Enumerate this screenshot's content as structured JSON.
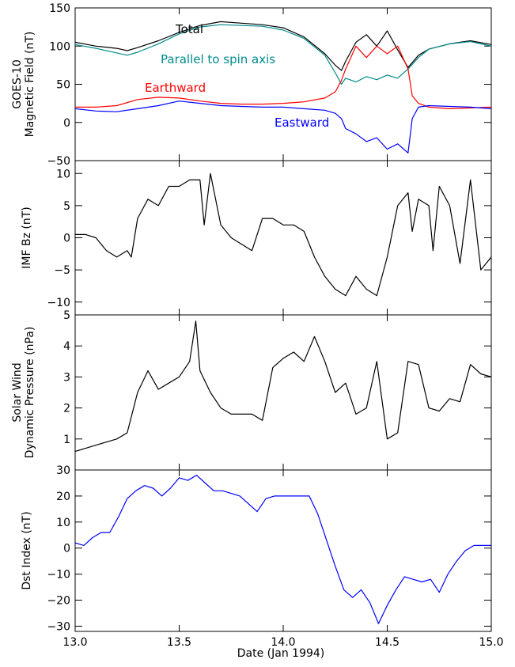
{
  "chart_data": [
    {
      "type": "line",
      "ylabel": [
        "GOES-10",
        "Magnetic Field (nT)"
      ],
      "xlim": [
        13.0,
        15.0
      ],
      "ylim": [
        -50,
        150
      ],
      "yticks": [
        -50,
        0,
        50,
        100,
        150
      ],
      "yticklabels": [
        "−50",
        "0",
        "50",
        "100",
        "150"
      ],
      "annotations": [
        {
          "text": "Total",
          "color": "#000000"
        },
        {
          "text": "Parallel to spin axis",
          "color": "#008b8b"
        },
        {
          "text": "Earthward",
          "color": "#ff0000"
        },
        {
          "text": "Eastward",
          "color": "#0000ff"
        }
      ],
      "series": [
        {
          "name": "Total",
          "color": "#000000",
          "x": [
            13.0,
            13.1,
            13.2,
            13.25,
            13.3,
            13.4,
            13.5,
            13.6,
            13.7,
            13.8,
            13.9,
            14.0,
            14.1,
            14.2,
            14.25,
            14.28,
            14.3,
            14.35,
            14.4,
            14.45,
            14.5,
            14.55,
            14.6,
            14.65,
            14.7,
            14.8,
            14.9,
            15.0
          ],
          "values": [
            105,
            100,
            97,
            94,
            98,
            107,
            118,
            127,
            132,
            130,
            128,
            124,
            112,
            90,
            75,
            68,
            80,
            105,
            115,
            100,
            120,
            95,
            72,
            88,
            96,
            103,
            107,
            102
          ]
        },
        {
          "name": "Parallel to spin axis",
          "color": "#008b8b",
          "x": [
            13.0,
            13.1,
            13.2,
            13.25,
            13.3,
            13.4,
            13.5,
            13.6,
            13.7,
            13.8,
            13.9,
            14.0,
            14.1,
            14.2,
            14.25,
            14.28,
            14.3,
            14.35,
            14.4,
            14.45,
            14.5,
            14.55,
            14.6,
            14.65,
            14.7,
            14.8,
            14.9,
            15.0
          ],
          "values": [
            102,
            97,
            91,
            88,
            92,
            103,
            116,
            125,
            128,
            127,
            126,
            121,
            110,
            88,
            65,
            50,
            58,
            53,
            60,
            56,
            62,
            58,
            70,
            85,
            96,
            103,
            106,
            100
          ]
        },
        {
          "name": "Earthward",
          "color": "#ff0000",
          "x": [
            13.0,
            13.1,
            13.2,
            13.3,
            13.4,
            13.5,
            13.6,
            13.7,
            13.8,
            13.9,
            14.0,
            14.1,
            14.2,
            14.25,
            14.28,
            14.3,
            14.35,
            14.4,
            14.45,
            14.5,
            14.55,
            14.6,
            14.62,
            14.65,
            14.7,
            14.8,
            14.9,
            15.0
          ],
          "values": [
            20,
            20,
            22,
            30,
            33,
            32,
            28,
            25,
            24,
            24,
            25,
            27,
            32,
            40,
            55,
            70,
            100,
            85,
            100,
            90,
            100,
            70,
            35,
            25,
            20,
            18,
            19,
            20
          ]
        },
        {
          "name": "Eastward",
          "color": "#0000ff",
          "x": [
            13.0,
            13.1,
            13.2,
            13.3,
            13.4,
            13.5,
            13.6,
            13.7,
            13.8,
            13.9,
            14.0,
            14.1,
            14.2,
            14.25,
            14.28,
            14.3,
            14.35,
            14.4,
            14.45,
            14.5,
            14.55,
            14.6,
            14.62,
            14.65,
            14.7,
            14.8,
            14.9,
            15.0
          ],
          "values": [
            18,
            15,
            14,
            18,
            22,
            28,
            25,
            22,
            21,
            20,
            20,
            18,
            16,
            12,
            5,
            -8,
            -15,
            -25,
            -20,
            -35,
            -28,
            -40,
            5,
            20,
            22,
            21,
            20,
            18
          ]
        }
      ]
    },
    {
      "type": "line",
      "ylabel": [
        "IMF Bz (nT)"
      ],
      "xlim": [
        13.0,
        15.0
      ],
      "ylim": [
        -12,
        12
      ],
      "yticks": [
        -10,
        -5,
        0,
        5,
        10
      ],
      "yticklabels": [
        "−10",
        "−5",
        "0",
        "5",
        "10"
      ],
      "series": [
        {
          "name": "",
          "color": "#000000",
          "x": [
            13.0,
            13.05,
            13.1,
            13.15,
            13.2,
            13.25,
            13.27,
            13.3,
            13.35,
            13.4,
            13.45,
            13.5,
            13.55,
            13.6,
            13.62,
            13.65,
            13.7,
            13.75,
            13.8,
            13.85,
            13.9,
            13.95,
            14.0,
            14.05,
            14.1,
            14.15,
            14.2,
            14.25,
            14.3,
            14.35,
            14.4,
            14.45,
            14.5,
            14.55,
            14.6,
            14.62,
            14.65,
            14.7,
            14.72,
            14.75,
            14.8,
            14.85,
            14.9,
            14.95,
            15.0
          ],
          "values": [
            0.5,
            0.5,
            0,
            -2,
            -3,
            -2,
            -3,
            3,
            6,
            5,
            8,
            8,
            9,
            9,
            2,
            10,
            2,
            0,
            -1,
            -2,
            3,
            3,
            2,
            2,
            1,
            -3,
            -6,
            -8,
            -9,
            -6,
            -8,
            -9,
            -3,
            5,
            7,
            1,
            6,
            5,
            -2,
            8,
            5,
            -4,
            9,
            -5,
            -3
          ]
        }
      ]
    },
    {
      "type": "line",
      "ylabel": [
        "Solar Wind",
        "Dynamic Pressure (nPa)"
      ],
      "xlim": [
        13.0,
        15.0
      ],
      "ylim": [
        0,
        5
      ],
      "yticks": [
        1,
        2,
        3,
        4,
        5
      ],
      "yticklabels": [
        "1",
        "2",
        "3",
        "4",
        "5"
      ],
      "series": [
        {
          "name": "",
          "color": "#000000",
          "x": [
            13.0,
            13.05,
            13.1,
            13.15,
            13.2,
            13.25,
            13.3,
            13.35,
            13.4,
            13.45,
            13.5,
            13.55,
            13.58,
            13.6,
            13.65,
            13.7,
            13.75,
            13.8,
            13.85,
            13.9,
            13.95,
            14.0,
            14.05,
            14.1,
            14.15,
            14.2,
            14.25,
            14.3,
            14.35,
            14.4,
            14.45,
            14.5,
            14.55,
            14.6,
            14.65,
            14.7,
            14.75,
            14.8,
            14.85,
            14.9,
            14.95,
            15.0
          ],
          "values": [
            0.6,
            0.7,
            0.8,
            0.9,
            1.0,
            1.2,
            2.5,
            3.2,
            2.6,
            2.8,
            3.0,
            3.5,
            4.8,
            3.2,
            2.5,
            2.0,
            1.8,
            1.8,
            1.8,
            1.6,
            3.3,
            3.6,
            3.8,
            3.5,
            4.3,
            3.5,
            2.5,
            2.8,
            1.8,
            2.0,
            3.5,
            1.0,
            1.2,
            3.5,
            3.4,
            2.0,
            1.9,
            2.3,
            2.2,
            3.4,
            3.1,
            3.0
          ]
        }
      ]
    },
    {
      "type": "line",
      "ylabel": [
        "Dst Index (nT)"
      ],
      "xlabel": "Date (Jan 1994)",
      "xlim": [
        13.0,
        15.0
      ],
      "ylim": [
        -32,
        30
      ],
      "yticks": [
        -30,
        -20,
        -10,
        0,
        10,
        20,
        30
      ],
      "yticklabels": [
        "−30",
        "−20",
        "−10",
        "0",
        "10",
        "20",
        "30"
      ],
      "xticks": [
        13.0,
        13.5,
        14.0,
        14.5,
        15.0
      ],
      "xticklabels": [
        "13.0",
        "13.5",
        "14.0",
        "14.5",
        "15.0"
      ],
      "series": [
        {
          "name": "",
          "color": "#0000ff",
          "x": [
            13.0,
            13.0417,
            13.0833,
            13.125,
            13.1667,
            13.2083,
            13.25,
            13.2917,
            13.3333,
            13.375,
            13.4167,
            13.4583,
            13.5,
            13.5417,
            13.5833,
            13.625,
            13.6667,
            13.7083,
            13.75,
            13.7917,
            13.8333,
            13.875,
            13.9167,
            13.9583,
            14.0,
            14.0417,
            14.0833,
            14.125,
            14.1667,
            14.2083,
            14.25,
            14.2917,
            14.3333,
            14.375,
            14.4167,
            14.4583,
            14.5,
            14.5417,
            14.5833,
            14.625,
            14.6667,
            14.7083,
            14.75,
            14.7917,
            14.8333,
            14.875,
            14.9167,
            14.9583,
            15.0
          ],
          "values": [
            2,
            1,
            4,
            6,
            6,
            12,
            19,
            22,
            24,
            23,
            20,
            23,
            27,
            26,
            28,
            25,
            22,
            22,
            21,
            20,
            17,
            14,
            19,
            20,
            20,
            20,
            20,
            20,
            13,
            3,
            -7,
            -16,
            -19,
            -16,
            -21,
            -29,
            -22,
            -16,
            -11,
            -12,
            -13,
            -12,
            -17,
            -10,
            -5,
            -1,
            1,
            1,
            1
          ]
        }
      ]
    }
  ]
}
